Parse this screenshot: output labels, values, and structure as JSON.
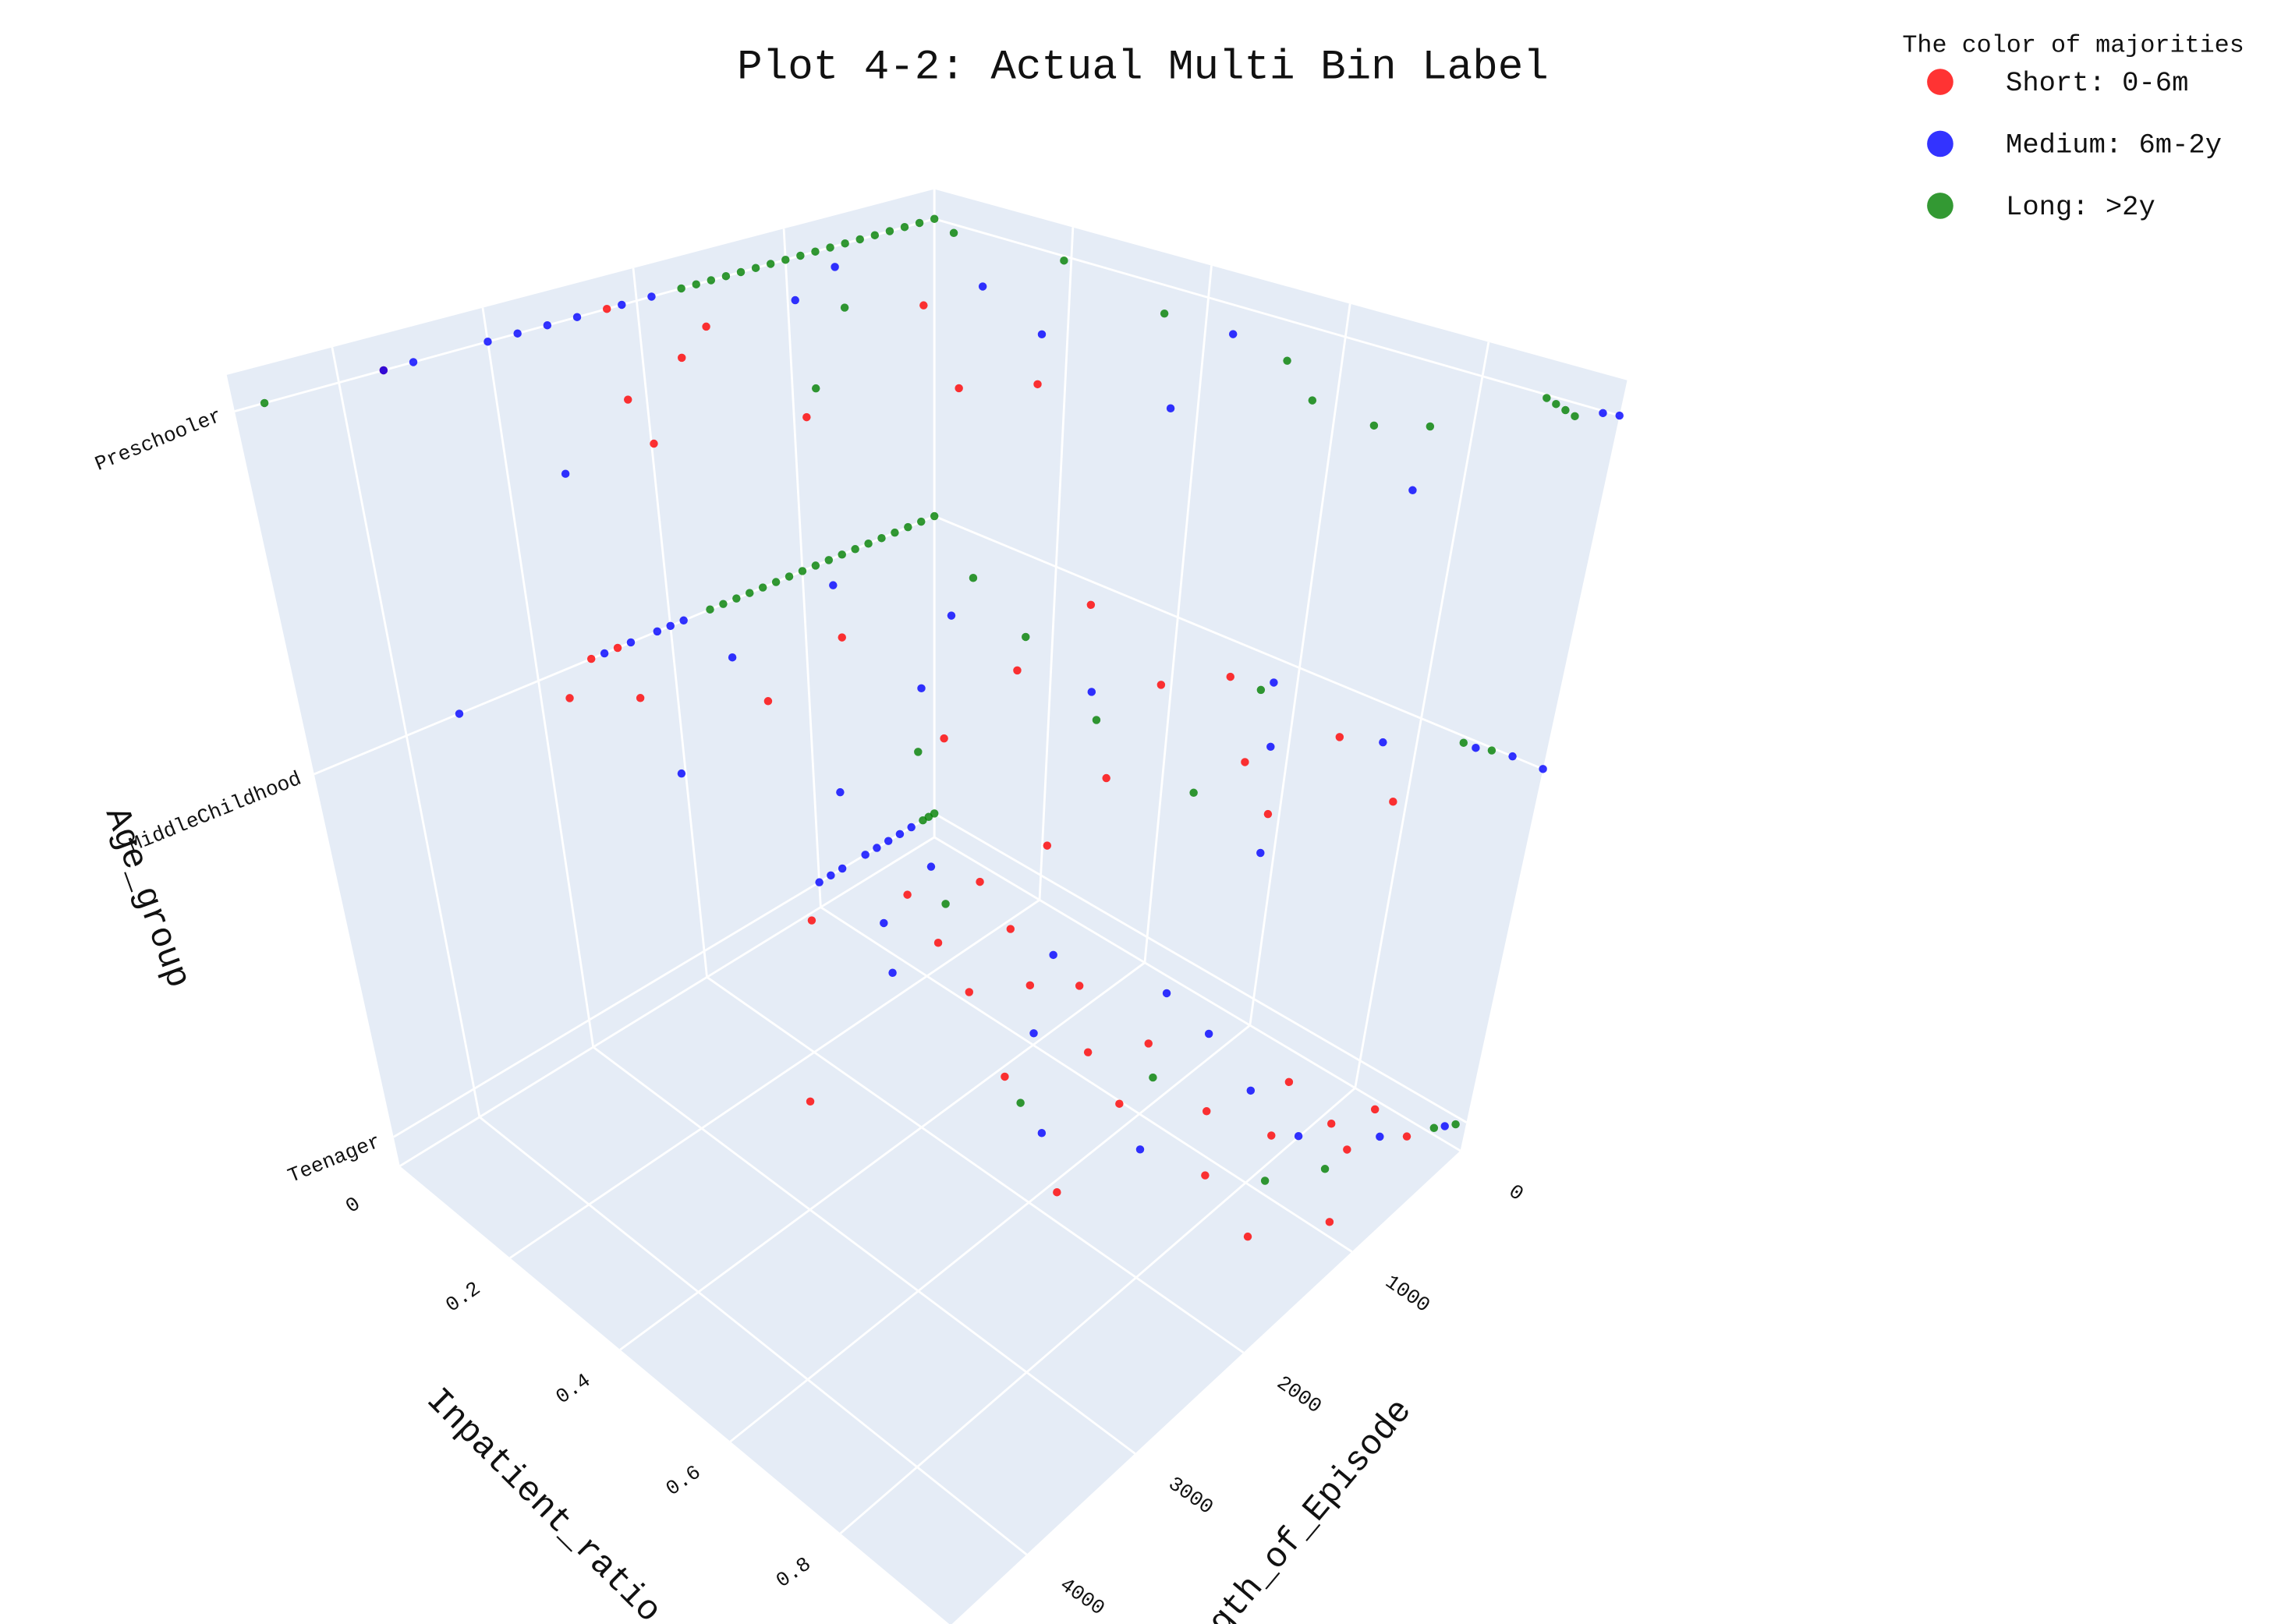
{
  "chart_data": {
    "type": "scatter3d",
    "title": "Plot 4-2: Actual Multi Bin Label",
    "legend_title": "The color of majorities",
    "legend_position": "top-right",
    "xlabel": "Inpatient_ratio",
    "ylabel": "Length_of_Episode",
    "zlabel": "Age_group",
    "xlim": [
      0,
      1
    ],
    "ylim": [
      0,
      4700
    ],
    "xticks": [
      0,
      0.2,
      0.4,
      0.6,
      0.8
    ],
    "yticks": [
      0,
      1000,
      2000,
      3000,
      4000
    ],
    "zcategories": [
      "Teenager",
      "MiddleChildhood",
      "Preschooler"
    ],
    "grid": true,
    "series": [
      {
        "name": "Short: 0-6m",
        "color": "#ff0000",
        "x": [
          0.95,
          0.9,
          0.85,
          0.8,
          0.75,
          0.7,
          0.6,
          0.55,
          0.5,
          0.45,
          0.4,
          0.35,
          0.3,
          0.25,
          0.2,
          0.15,
          0.1,
          0.05,
          0.9,
          0.65,
          0.3,
          0.97,
          0.88,
          0.78,
          0.3,
          0.5,
          0.7,
          0.6,
          0.4,
          0.2,
          0.1,
          0,
          0,
          0.8,
          0.9,
          0.55,
          0.35,
          0.15,
          0.05,
          0.65,
          0.75,
          0,
          0,
          0.1,
          0.15,
          0.2,
          0.3,
          0.35,
          0.4,
          0.45,
          0.2
        ],
        "y": [
          300,
          600,
          500,
          800,
          400,
          900,
          1200,
          700,
          1000,
          1500,
          600,
          800,
          1100,
          500,
          900,
          300,
          700,
          1300,
          1500,
          2000,
          2500,
          1100,
          250,
          1300,
          200,
          600,
          900,
          1500,
          1800,
          2200,
          2700,
          2400,
          2600,
          1200,
          700,
          300,
          1000,
          1400,
          3000,
          2200,
          400,
          2200,
          3700,
          2000,
          2400,
          3000,
          3300,
          2500,
          1700,
          1400,
          1000
        ],
        "z": [
          "Teenager",
          "Teenager",
          "Teenager",
          "Teenager",
          "Teenager",
          "Teenager",
          "Teenager",
          "Teenager",
          "Teenager",
          "Teenager",
          "Teenager",
          "Teenager",
          "Teenager",
          "Teenager",
          "Teenager",
          "Teenager",
          "Teenager",
          "Teenager",
          "Teenager",
          "Teenager",
          "Teenager",
          "Teenager",
          "Teenager",
          "Teenager",
          "MiddleChildhood",
          "MiddleChildhood",
          "MiddleChildhood",
          "MiddleChildhood",
          "MiddleChildhood",
          "MiddleChildhood",
          "MiddleChildhood",
          "MiddleChildhood",
          "MiddleChildhood",
          "MiddleChildhood",
          "MiddleChildhood",
          "MiddleChildhood",
          "MiddleChildhood",
          "MiddleChildhood",
          "MiddleChildhood",
          "MiddleChildhood",
          "MiddleChildhood",
          "Preschooler",
          "Preschooler",
          "Preschooler",
          "Preschooler",
          "Preschooler",
          "Preschooler",
          "Preschooler",
          "Preschooler",
          "Preschooler",
          "Preschooler"
        ]
      },
      {
        "name": "Medium: 6m-2y",
        "color": "#0000ff",
        "x": [
          0.98,
          0.92,
          0.83,
          0.72,
          0.6,
          0.5,
          0.42,
          0.33,
          0.2,
          0.12,
          0.08,
          0,
          0,
          0,
          0,
          0,
          0,
          0,
          0,
          0.68,
          0.56,
          0,
          0,
          0,
          0,
          0,
          0,
          0.95,
          1,
          0.9,
          0.6,
          0.45,
          0.3,
          0.2,
          0.1,
          0.05,
          0.7,
          0.8,
          0.85,
          0.4,
          0.25,
          0,
          0,
          0,
          0,
          0,
          0,
          0,
          0,
          0.05,
          0.2,
          0.35,
          0.6,
          0.95,
          1,
          0.98,
          0.3,
          0.5,
          0.1
        ],
        "y": [
          100,
          400,
          700,
          600,
          400,
          300,
          1100,
          500,
          1300,
          1000,
          400,
          200,
          300,
          400,
          500,
          600,
          800,
          900,
          1000,
          1400,
          1700,
          1900,
          2000,
          2100,
          2300,
          2500,
          3600,
          0,
          0,
          50,
          200,
          900,
          1500,
          800,
          2000,
          1000,
          700,
          300,
          1500,
          2600,
          3100,
          1900,
          2100,
          2400,
          2600,
          2800,
          3000,
          3500,
          3700,
          900,
          600,
          900,
          1200,
          1200,
          0,
          20,
          3900,
          300,
          1400
        ],
        "z": [
          "Teenager",
          "Teenager",
          "Teenager",
          "Teenager",
          "Teenager",
          "Teenager",
          "Teenager",
          "Teenager",
          "Teenager",
          "Teenager",
          "Teenager",
          "Teenager",
          "Teenager",
          "Teenager",
          "Teenager",
          "Teenager",
          "Teenager",
          "Teenager",
          "Teenager",
          "Teenager",
          "Teenager",
          "MiddleChildhood",
          "MiddleChildhood",
          "MiddleChildhood",
          "MiddleChildhood",
          "MiddleChildhood",
          "MiddleChildhood",
          "MiddleChildhood",
          "MiddleChildhood",
          "MiddleChildhood",
          "MiddleChildhood",
          "MiddleChildhood",
          "MiddleChildhood",
          "MiddleChildhood",
          "MiddleChildhood",
          "MiddleChildhood",
          "MiddleChildhood",
          "MiddleChildhood",
          "MiddleChildhood",
          "MiddleChildhood",
          "MiddleChildhood",
          "Preschooler",
          "Preschooler",
          "Preschooler",
          "Preschooler",
          "Preschooler",
          "Preschooler",
          "Preschooler",
          "Preschooler",
          "Preschooler",
          "Preschooler",
          "Preschooler",
          "Preschooler",
          "Preschooler",
          "Preschooler",
          "Preschooler",
          "Preschooler",
          "Preschooler",
          "Preschooler"
        ]
      },
      {
        "name": "Long: >2y",
        "color": "#008000",
        "x": [
          0,
          0,
          0,
          0.99,
          0.97,
          0.9,
          0.6,
          0.5,
          0.15,
          0.85,
          0,
          0,
          0,
          0,
          0,
          0,
          0,
          0,
          0,
          0,
          0,
          0,
          0,
          0,
          0,
          0,
          0,
          0,
          0.88,
          0.92,
          0.3,
          0.5,
          0.6,
          0.15,
          0.7,
          0.4,
          0,
          0,
          0,
          0,
          0,
          0,
          0,
          0,
          0,
          0,
          0,
          0,
          0,
          0,
          0,
          0,
          0,
          0,
          0,
          0.9,
          0.92,
          0.94,
          0.96,
          0.05,
          0.2,
          0.4,
          0.6,
          0.7,
          0.8,
          0.85,
          0.3,
          0.15
        ],
        "y": [
          0,
          50,
          100,
          50,
          150,
          800,
          900,
          1600,
          600,
          1100,
          0,
          100,
          200,
          300,
          400,
          500,
          600,
          700,
          800,
          900,
          1000,
          1100,
          1200,
          1300,
          1400,
          1500,
          1600,
          1700,
          50,
          20,
          700,
          1100,
          300,
          400,
          1300,
          2000,
          0,
          100,
          200,
          300,
          400,
          500,
          600,
          700,
          800,
          900,
          1000,
          1100,
          1200,
          1300,
          1400,
          1500,
          1600,
          1700,
          4500,
          30,
          60,
          90,
          120,
          100,
          50,
          300,
          400,
          700,
          750,
          600,
          2200,
          1300
        ],
        "z": [
          "Teenager",
          "Teenager",
          "Teenager",
          "Teenager",
          "Teenager",
          "Teenager",
          "Teenager",
          "Teenager",
          "Teenager",
          "Teenager",
          "MiddleChildhood",
          "MiddleChildhood",
          "MiddleChildhood",
          "MiddleChildhood",
          "MiddleChildhood",
          "MiddleChildhood",
          "MiddleChildhood",
          "MiddleChildhood",
          "MiddleChildhood",
          "MiddleChildhood",
          "MiddleChildhood",
          "MiddleChildhood",
          "MiddleChildhood",
          "MiddleChildhood",
          "MiddleChildhood",
          "MiddleChildhood",
          "MiddleChildhood",
          "MiddleChildhood",
          "MiddleChildhood",
          "MiddleChildhood",
          "MiddleChildhood",
          "MiddleChildhood",
          "MiddleChildhood",
          "MiddleChildhood",
          "MiddleChildhood",
          "MiddleChildhood",
          "Preschooler",
          "Preschooler",
          "Preschooler",
          "Preschooler",
          "Preschooler",
          "Preschooler",
          "Preschooler",
          "Preschooler",
          "Preschooler",
          "Preschooler",
          "Preschooler",
          "Preschooler",
          "Preschooler",
          "Preschooler",
          "Preschooler",
          "Preschooler",
          "Preschooler",
          "Preschooler",
          "Preschooler",
          "Preschooler",
          "Preschooler",
          "Preschooler",
          "Preschooler",
          "Preschooler",
          "Preschooler",
          "Preschooler",
          "Preschooler",
          "Preschooler",
          "Preschooler",
          "Preschooler",
          "Preschooler",
          "Preschooler"
        ]
      }
    ]
  }
}
